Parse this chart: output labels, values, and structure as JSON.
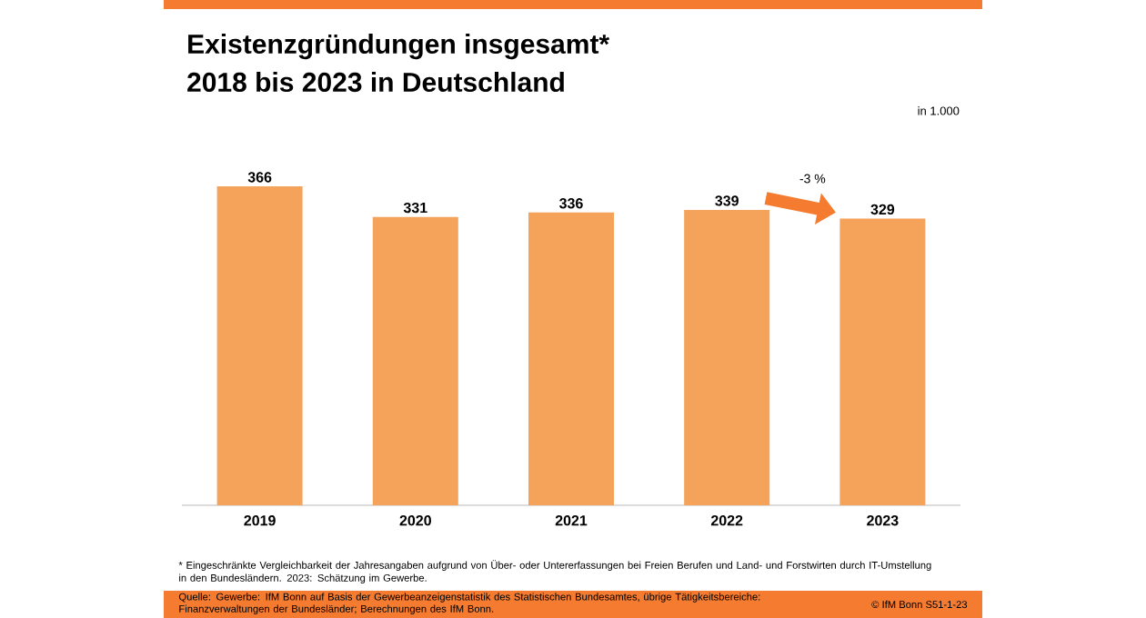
{
  "chart_data": {
    "type": "bar",
    "title": "Existenzgründungen insgesamt*",
    "subtitle": "2018 bis 2023 in Deutschland",
    "categories": [
      "2019",
      "2020",
      "2021",
      "2022",
      "2023"
    ],
    "values": [
      366,
      331,
      336,
      339,
      329
    ],
    "color": "#f5a35a",
    "data_labels": true,
    "annotations": [
      "in 1.000",
      "-3 %",
      "* Eingeschränkte Vergleichbarkeit der Jahresangaben aufgrund von Über- oder Untererfassungen bei Freien Berufen und Land- und Forstwirten durch IT-Umstellung in den Bundesländern. 2023: Schätzung im Gewerbe.",
      "Quelle: Gewerbe: IfM Bonn auf Basis der Gewerbeanzeigenstatistik des Statistischen Bundesamtes, übrige Tätigkeitsbereiche: Finanzverwaltungen der Bundesländer; Berechnungen des IfM Bonn.",
      "© IfM Bonn S51-1-23"
    ]
  }
}
